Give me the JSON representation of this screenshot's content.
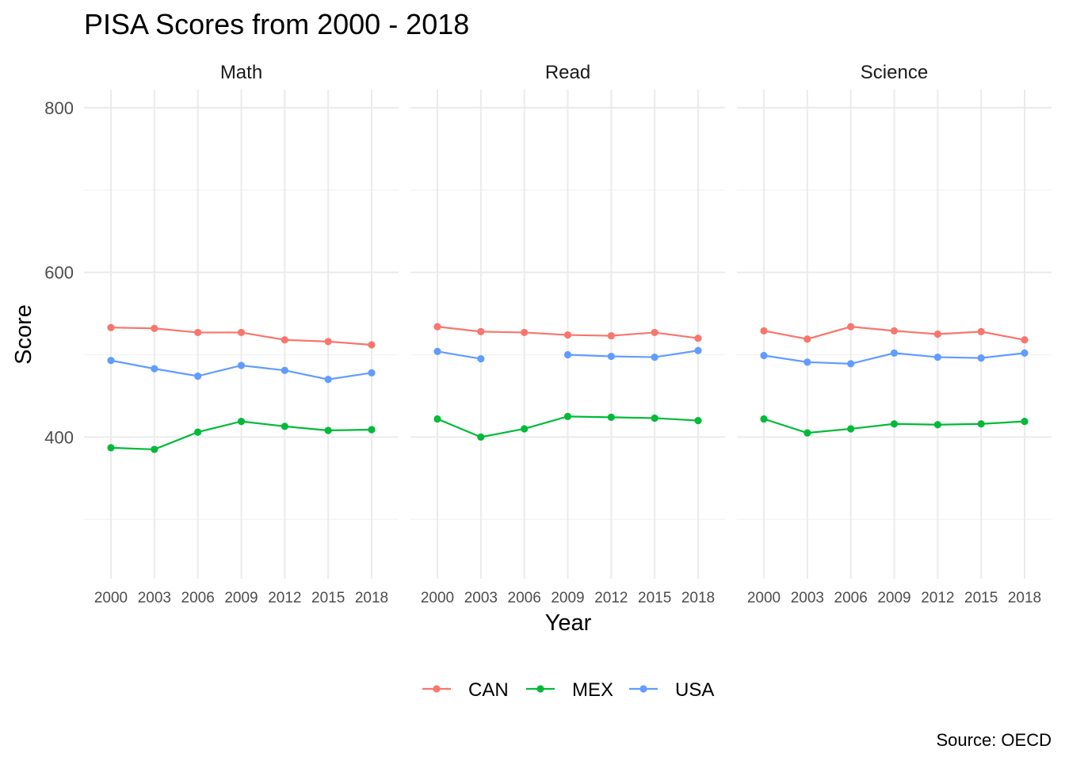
{
  "chart_data": {
    "type": "line",
    "title": "PISA Scores from 2000 - 2018",
    "xlabel": "Year",
    "ylabel": "Score",
    "caption": "Source: OECD",
    "x": [
      2000,
      2003,
      2006,
      2009,
      2012,
      2015,
      2018
    ],
    "ylim": [
      228,
      822
    ],
    "yticks": [
      400,
      600,
      800
    ],
    "grid": true,
    "legend": "bottom",
    "series_colors": {
      "CAN": "#F8766D",
      "MEX": "#00BA38",
      "USA": "#619CFF"
    },
    "legend_entries": [
      "CAN",
      "MEX",
      "USA"
    ],
    "facets": [
      {
        "name": "Math",
        "series": [
          {
            "name": "CAN",
            "values": [
              533,
              532,
              527,
              527,
              518,
              516,
              512
            ]
          },
          {
            "name": "MEX",
            "values": [
              387,
              385,
              406,
              419,
              413,
              408,
              409
            ]
          },
          {
            "name": "USA",
            "values": [
              493,
              483,
              474,
              487,
              481,
              470,
              478
            ]
          }
        ]
      },
      {
        "name": "Read",
        "series": [
          {
            "name": "CAN",
            "values": [
              534,
              528,
              527,
              524,
              523,
              527,
              520
            ]
          },
          {
            "name": "MEX",
            "values": [
              422,
              400,
              410,
              425,
              424,
              423,
              420
            ]
          },
          {
            "name": "USA",
            "values": [
              504,
              495,
              null,
              500,
              498,
              497,
              505
            ]
          }
        ]
      },
      {
        "name": "Science",
        "series": [
          {
            "name": "CAN",
            "values": [
              529,
              519,
              534,
              529,
              525,
              528,
              518
            ]
          },
          {
            "name": "MEX",
            "values": [
              422,
              405,
              410,
              416,
              415,
              416,
              419
            ]
          },
          {
            "name": "USA",
            "values": [
              499,
              491,
              489,
              502,
              497,
              496,
              502
            ]
          }
        ]
      }
    ]
  }
}
